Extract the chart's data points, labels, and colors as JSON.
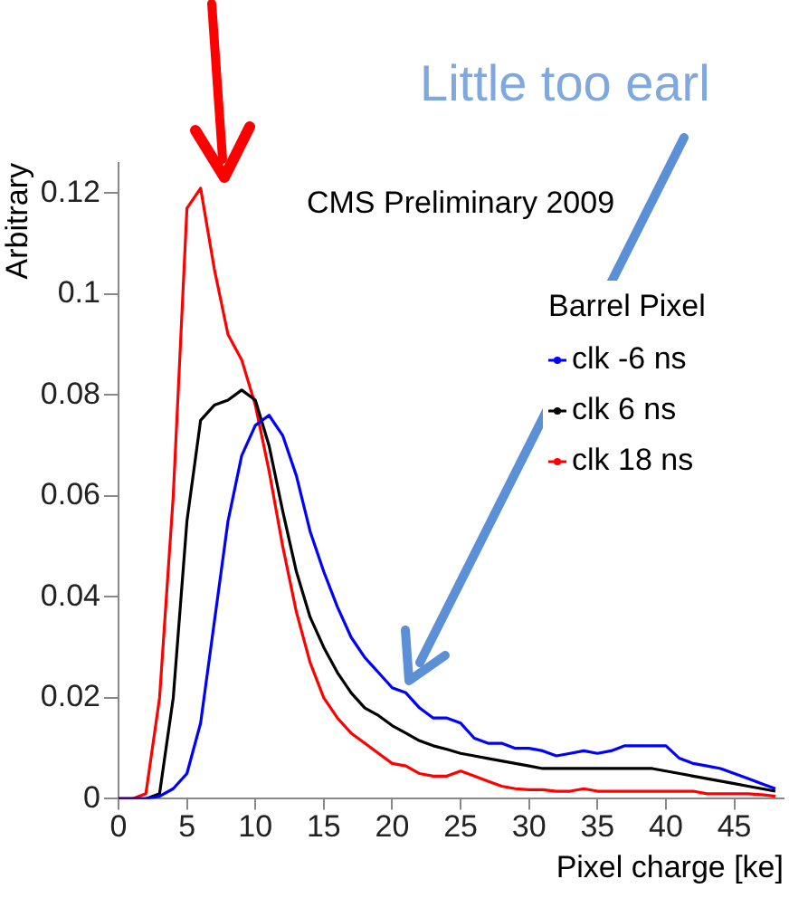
{
  "chart_data": {
    "type": "line",
    "xlabel": "Pixel charge [ke]",
    "ylabel": "Arbitrary",
    "legend_title": "Barrel Pixel",
    "annotations": [
      "CMS Preliminary 2009",
      "Little too earl"
    ],
    "x": [
      0,
      1,
      2,
      3,
      4,
      5,
      6,
      7,
      8,
      9,
      10,
      11,
      12,
      13,
      14,
      15,
      16,
      17,
      18,
      19,
      20,
      21,
      22,
      23,
      24,
      25,
      26,
      27,
      28,
      29,
      30,
      31,
      32,
      33,
      34,
      35,
      36,
      37,
      38,
      39,
      40,
      41,
      42,
      43,
      44,
      45,
      46,
      47,
      48
    ],
    "series": [
      {
        "name": "clk -6 ns",
        "color": "#0000ff",
        "values": [
          0,
          0,
          0,
          0.0005,
          0.002,
          0.005,
          0.015,
          0.035,
          0.055,
          0.068,
          0.074,
          0.076,
          0.072,
          0.064,
          0.053,
          0.045,
          0.038,
          0.032,
          0.028,
          0.025,
          0.022,
          0.021,
          0.018,
          0.016,
          0.016,
          0.015,
          0.012,
          0.011,
          0.011,
          0.01,
          0.01,
          0.0095,
          0.0085,
          0.009,
          0.0095,
          0.009,
          0.0095,
          0.0105,
          0.0105,
          0.0105,
          0.0105,
          0.008,
          0.007,
          0.0065,
          0.006,
          0.005,
          0.004,
          0.003,
          0.002
        ]
      },
      {
        "name": "clk 6 ns",
        "color": "#000000",
        "values": [
          0,
          0,
          0,
          0.001,
          0.02,
          0.055,
          0.075,
          0.078,
          0.079,
          0.081,
          0.079,
          0.07,
          0.057,
          0.045,
          0.036,
          0.03,
          0.025,
          0.021,
          0.018,
          0.0165,
          0.0145,
          0.013,
          0.0115,
          0.0105,
          0.0098,
          0.009,
          0.0085,
          0.008,
          0.0075,
          0.007,
          0.0065,
          0.006,
          0.006,
          0.006,
          0.006,
          0.006,
          0.006,
          0.006,
          0.006,
          0.006,
          0.0055,
          0.005,
          0.0045,
          0.004,
          0.0035,
          0.003,
          0.0025,
          0.002,
          0.0015
        ]
      },
      {
        "name": "clk 18 ns",
        "color": "#ff0000",
        "values": [
          0,
          0,
          0.001,
          0.02,
          0.06,
          0.117,
          0.121,
          0.105,
          0.092,
          0.087,
          0.078,
          0.065,
          0.05,
          0.037,
          0.027,
          0.02,
          0.016,
          0.013,
          0.011,
          0.009,
          0.007,
          0.0065,
          0.005,
          0.0045,
          0.0045,
          0.0055,
          0.0045,
          0.0035,
          0.0025,
          0.002,
          0.0018,
          0.0018,
          0.0015,
          0.0015,
          0.002,
          0.0015,
          0.0015,
          0.0015,
          0.0015,
          0.0015,
          0.0015,
          0.0015,
          0.0015,
          0.001,
          0.001,
          0.001,
          0.001,
          0.0008,
          0.0005
        ]
      }
    ],
    "xlim": [
      0,
      48.6
    ],
    "xticks": [
      0,
      5,
      10,
      15,
      20,
      25,
      30,
      35,
      40,
      45
    ],
    "ylim": [
      0,
      0.126
    ],
    "yticks": [
      0,
      0.02,
      0.04,
      0.06,
      0.08,
      0.1,
      0.12
    ],
    "grid": false,
    "legend": "top right",
    "marker": "none",
    "line_style": "solid"
  }
}
